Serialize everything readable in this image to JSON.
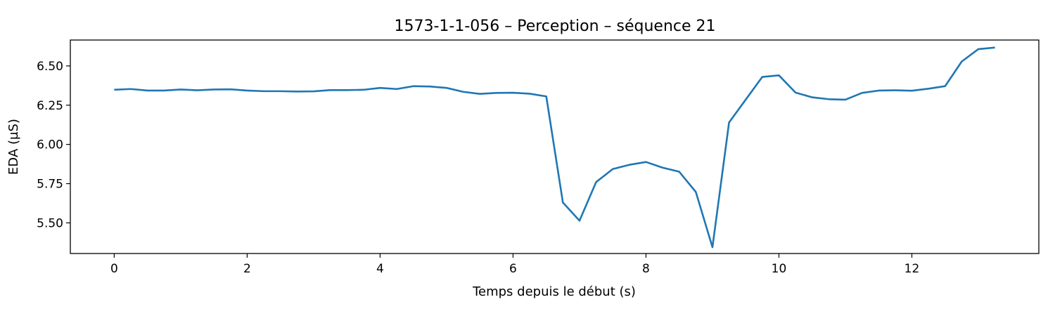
{
  "chart_data": {
    "type": "line",
    "title": "1573-1-1-056 – Perception – séquence 21",
    "xlabel": "Temps depuis le début (s)",
    "ylabel": "EDA (µS)",
    "xlim": [
      -0.66,
      13.91
    ],
    "ylim": [
      5.305,
      6.665
    ],
    "xticks": [
      0,
      2,
      4,
      6,
      8,
      10,
      12
    ],
    "yticks": [
      5.5,
      5.75,
      6.0,
      6.25,
      6.5
    ],
    "xtick_labels": [
      "0",
      "2",
      "4",
      "6",
      "8",
      "10",
      "12"
    ],
    "ytick_labels": [
      "5.50",
      "5.75",
      "6.00",
      "6.25",
      "6.50"
    ],
    "grid": false,
    "series": [
      {
        "color": "#1f77b4",
        "x": [
          0,
          0.25,
          0.5,
          0.75,
          1.0,
          1.25,
          1.5,
          1.75,
          2.0,
          2.25,
          2.5,
          2.75,
          3.0,
          3.25,
          3.5,
          3.75,
          4.0,
          4.25,
          4.5,
          4.75,
          5.0,
          5.25,
          5.5,
          5.75,
          6.0,
          6.25,
          6.5,
          6.75,
          7.0,
          7.25,
          7.5,
          7.75,
          8.0,
          8.25,
          8.5,
          8.75,
          9.0,
          9.25,
          9.5,
          9.75,
          10.0,
          10.25,
          10.5,
          10.75,
          11.0,
          11.25,
          11.5,
          11.75,
          12.0,
          12.25,
          12.5,
          12.75,
          13.0,
          13.25
        ],
        "y": [
          6.348,
          6.353,
          6.343,
          6.343,
          6.35,
          6.345,
          6.35,
          6.351,
          6.343,
          6.339,
          6.339,
          6.337,
          6.338,
          6.346,
          6.346,
          6.348,
          6.36,
          6.353,
          6.371,
          6.369,
          6.36,
          6.335,
          6.322,
          6.328,
          6.329,
          6.323,
          6.306,
          5.63,
          5.514,
          5.76,
          5.843,
          5.87,
          5.888,
          5.852,
          5.826,
          5.697,
          5.345,
          6.14,
          6.285,
          6.43,
          6.44,
          6.33,
          6.3,
          6.288,
          6.285,
          6.328,
          6.343,
          6.345,
          6.342,
          6.355,
          6.371,
          6.528,
          6.607,
          6.617
        ]
      }
    ]
  }
}
